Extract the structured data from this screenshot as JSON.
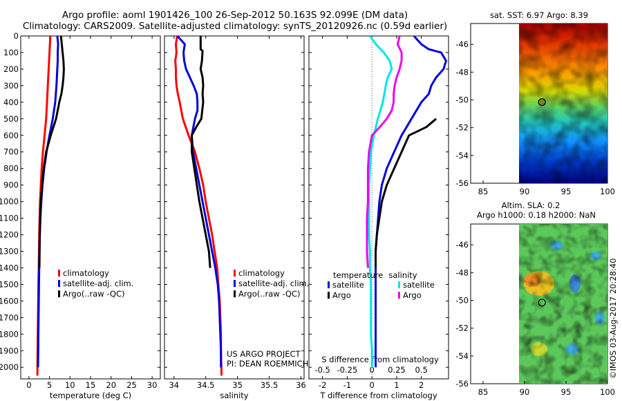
{
  "header": {
    "line1": "Argo profile: aoml 1901426_100 26-Sep-2012 50.163S 92.099E (DM data)",
    "line2": "Climatology: CARS2009. Satellite-adjusted climatology: synTS_20120926.nc (0.59d earlier)"
  },
  "colors": {
    "climatology": "#ff0000",
    "satellite": "#0000dd",
    "argo": "#000000",
    "sat_salinity": "#00e5e5",
    "argo_salinity": "#ee00ee"
  },
  "credits": {
    "project": "US ARGO PROJECT",
    "pi": "PI: DEAN ROEMMICH",
    "stamp": "©IMOS 03-Aug-2017 20:28:40"
  },
  "chart_data": [
    {
      "id": "temperature",
      "type": "line",
      "xlabel": "temperature (deg C)",
      "xlim": [
        -2,
        32
      ],
      "ylim": [
        2070,
        0
      ],
      "xticks": [
        0,
        5,
        10,
        15,
        20,
        25,
        30
      ],
      "yticks": [
        0,
        100,
        200,
        300,
        400,
        500,
        600,
        700,
        800,
        900,
        1000,
        1100,
        1200,
        1300,
        1400,
        1500,
        1600,
        1700,
        1800,
        1900,
        2000
      ],
      "legend": [
        "climatology",
        "satellite-adj. clim.",
        "Argo(..raw -QC)"
      ],
      "series": [
        {
          "name": "climatology",
          "color": "#ff0000",
          "points": [
            [
              5.2,
              0
            ],
            [
              5.0,
              100
            ],
            [
              4.8,
              200
            ],
            [
              4.6,
              300
            ],
            [
              4.4,
              400
            ],
            [
              4.2,
              500
            ],
            [
              3.8,
              600
            ],
            [
              3.4,
              700
            ],
            [
              3.1,
              800
            ],
            [
              2.9,
              900
            ],
            [
              2.7,
              1000
            ],
            [
              2.6,
              1100
            ],
            [
              2.5,
              1200
            ],
            [
              2.45,
              1300
            ],
            [
              2.4,
              1400
            ],
            [
              2.3,
              1500
            ],
            [
              2.25,
              1600
            ],
            [
              2.2,
              1700
            ],
            [
              2.15,
              1800
            ],
            [
              2.1,
              1900
            ],
            [
              2.05,
              2050
            ]
          ]
        },
        {
          "name": "satellite-adj. clim.",
          "color": "#0000dd",
          "points": [
            [
              6.9,
              0
            ],
            [
              7.1,
              50
            ],
            [
              7.0,
              100
            ],
            [
              7.0,
              150
            ],
            [
              6.9,
              200
            ],
            [
              6.7,
              300
            ],
            [
              6.4,
              400
            ],
            [
              5.8,
              500
            ],
            [
              5.0,
              600
            ],
            [
              4.3,
              700
            ],
            [
              3.7,
              800
            ],
            [
              3.3,
              900
            ],
            [
              3.0,
              1000
            ],
            [
              2.8,
              1100
            ],
            [
              2.65,
              1200
            ],
            [
              2.55,
              1300
            ],
            [
              2.5,
              1400
            ],
            [
              2.45,
              1500
            ],
            [
              2.4,
              1600
            ],
            [
              2.35,
              1700
            ],
            [
              2.3,
              1800
            ],
            [
              2.25,
              1900
            ],
            [
              2.2,
              2000
            ]
          ]
        },
        {
          "name": "Argo(..raw -QC)",
          "color": "#000000",
          "points": [
            [
              7.8,
              0
            ],
            [
              8.0,
              50
            ],
            [
              8.2,
              100
            ],
            [
              8.4,
              150
            ],
            [
              8.5,
              200
            ],
            [
              8.4,
              250
            ],
            [
              8.2,
              300
            ],
            [
              7.9,
              350
            ],
            [
              7.4,
              400
            ],
            [
              6.6,
              500
            ],
            [
              5.3,
              600
            ],
            [
              4.2,
              700
            ],
            [
              3.6,
              800
            ],
            [
              3.2,
              900
            ],
            [
              2.9,
              1000
            ],
            [
              2.75,
              1100
            ],
            [
              2.65,
              1200
            ],
            [
              2.6,
              1300
            ],
            [
              2.55,
              1400
            ]
          ]
        }
      ]
    },
    {
      "id": "salinity",
      "type": "line",
      "xlabel": "salinity",
      "xlim": [
        33.85,
        36.05
      ],
      "ylim": [
        2070,
        0
      ],
      "xticks": [
        34,
        34.5,
        35,
        35.5,
        36
      ],
      "legend": [
        "climatology",
        "satellite-adj. clim.",
        "Argo(..raw -QC)"
      ],
      "series": [
        {
          "name": "climatology",
          "color": "#ff0000",
          "points": [
            [
              34.05,
              0
            ],
            [
              34.03,
              50
            ],
            [
              34.04,
              100
            ],
            [
              34.02,
              150
            ],
            [
              34.03,
              200
            ],
            [
              34.03,
              250
            ],
            [
              34.04,
              300
            ],
            [
              34.06,
              350
            ],
            [
              34.09,
              400
            ],
            [
              34.14,
              500
            ],
            [
              34.23,
              600
            ],
            [
              34.33,
              700
            ],
            [
              34.4,
              800
            ],
            [
              34.46,
              900
            ],
            [
              34.5,
              1000
            ],
            [
              34.55,
              1100
            ],
            [
              34.6,
              1200
            ],
            [
              34.64,
              1300
            ],
            [
              34.68,
              1400
            ],
            [
              34.7,
              1500
            ],
            [
              34.72,
              1600
            ],
            [
              34.73,
              1700
            ],
            [
              34.74,
              1800
            ],
            [
              34.74,
              1900
            ],
            [
              34.75,
              2050
            ]
          ]
        },
        {
          "name": "satellite-adj. clim.",
          "color": "#0000dd",
          "points": [
            [
              34.05,
              0
            ],
            [
              34.1,
              20
            ],
            [
              34.17,
              50
            ],
            [
              34.15,
              100
            ],
            [
              34.16,
              150
            ],
            [
              34.19,
              200
            ],
            [
              34.25,
              250
            ],
            [
              34.31,
              300
            ],
            [
              34.36,
              350
            ],
            [
              34.37,
              400
            ],
            [
              34.37,
              450
            ],
            [
              34.33,
              500
            ],
            [
              34.28,
              600
            ],
            [
              34.3,
              700
            ],
            [
              34.35,
              800
            ],
            [
              34.4,
              900
            ],
            [
              34.45,
              1000
            ],
            [
              34.5,
              1100
            ],
            [
              34.55,
              1200
            ],
            [
              34.6,
              1300
            ],
            [
              34.65,
              1400
            ],
            [
              34.69,
              1500
            ],
            [
              34.71,
              1600
            ],
            [
              34.72,
              1700
            ],
            [
              34.73,
              1800
            ],
            [
              34.74,
              1900
            ],
            [
              34.74,
              2000
            ]
          ]
        },
        {
          "name": "Argo(..raw -QC)",
          "color": "#000000",
          "points": [
            [
              34.42,
              0
            ],
            [
              34.42,
              50
            ],
            [
              34.42,
              80
            ],
            [
              34.45,
              90
            ],
            [
              34.44,
              150
            ],
            [
              34.42,
              200
            ],
            [
              34.45,
              250
            ],
            [
              34.46,
              300
            ],
            [
              34.45,
              350
            ],
            [
              34.46,
              400
            ],
            [
              34.43,
              500
            ],
            [
              34.35,
              550
            ],
            [
              34.28,
              600
            ],
            [
              34.28,
              700
            ],
            [
              34.32,
              800
            ],
            [
              34.36,
              900
            ],
            [
              34.4,
              1000
            ],
            [
              34.45,
              1100
            ],
            [
              34.5,
              1200
            ],
            [
              34.55,
              1300
            ],
            [
              34.57,
              1400
            ]
          ]
        }
      ]
    },
    {
      "id": "differences",
      "type": "line",
      "xlabel": "T difference from climatology",
      "xlabel_top": "S difference from climatology",
      "xlim": [
        -2.55,
        3.1
      ],
      "ylim": [
        2070,
        0
      ],
      "xticks": [
        -2,
        -1,
        0,
        1,
        2
      ],
      "xticks_top": [
        -0.5,
        -0.25,
        0,
        0.25,
        0.5
      ],
      "legend_groups": [
        {
          "title": "temperature",
          "items": [
            "satellite",
            "Argo"
          ]
        },
        {
          "title": "salinity",
          "items": [
            "satellite",
            "Argo"
          ]
        }
      ],
      "series": [
        {
          "name": "temperature satellite",
          "color": "#0000dd",
          "points": [
            [
              1.7,
              0
            ],
            [
              2.0,
              50
            ],
            [
              2.3,
              80
            ],
            [
              2.8,
              100
            ],
            [
              3.0,
              150
            ],
            [
              2.9,
              200
            ],
            [
              2.6,
              250
            ],
            [
              2.4,
              300
            ],
            [
              2.3,
              350
            ],
            [
              2.0,
              400
            ],
            [
              1.6,
              500
            ],
            [
              1.2,
              600
            ],
            [
              0.9,
              700
            ],
            [
              0.6,
              800
            ],
            [
              0.4,
              900
            ],
            [
              0.3,
              1000
            ],
            [
              0.25,
              1100
            ],
            [
              0.2,
              1200
            ],
            [
              0.15,
              1300
            ],
            [
              0.15,
              1400
            ],
            [
              0.15,
              1500
            ],
            [
              0.15,
              1600
            ],
            [
              0.15,
              1700
            ],
            [
              0.15,
              1800
            ],
            [
              0.15,
              1900
            ],
            [
              0.15,
              2000
            ]
          ]
        },
        {
          "name": "temperature Argo",
          "color": "#000000",
          "points": [
            [
              2.6,
              500
            ],
            [
              2.2,
              550
            ],
            [
              1.5,
              600
            ],
            [
              1.2,
              700
            ],
            [
              0.9,
              800
            ],
            [
              0.6,
              900
            ],
            [
              0.4,
              1000
            ],
            [
              0.3,
              1100
            ],
            [
              0.2,
              1200
            ],
            [
              0.15,
              1300
            ],
            [
              0.15,
              1400
            ]
          ]
        },
        {
          "name": "salinity satellite",
          "color": "#00e5e5",
          "points": [
            [
              -0.02,
              0
            ],
            [
              0.04,
              50
            ],
            [
              0.12,
              100
            ],
            [
              0.18,
              150
            ],
            [
              0.2,
              200
            ],
            [
              0.16,
              250
            ],
            [
              0.14,
              300
            ],
            [
              0.11,
              400
            ],
            [
              0.06,
              500
            ],
            [
              0.02,
              600
            ],
            [
              -0.01,
              700
            ],
            [
              -0.02,
              800
            ],
            [
              -0.03,
              900
            ],
            [
              -0.03,
              1000
            ],
            [
              -0.03,
              1100
            ],
            [
              -0.03,
              1200
            ],
            [
              -0.02,
              1300
            ],
            [
              -0.02,
              1400
            ],
            [
              -0.01,
              1500
            ],
            [
              -0.01,
              1600
            ],
            [
              -0.01,
              1700
            ],
            [
              -0.01,
              1800
            ],
            [
              0.0,
              1900
            ],
            [
              0.0,
              2000
            ]
          ]
        },
        {
          "name": "salinity Argo",
          "color": "#ee00ee",
          "points": [
            [
              0.28,
              0
            ],
            [
              0.26,
              50
            ],
            [
              0.3,
              100
            ],
            [
              0.3,
              150
            ],
            [
              0.28,
              200
            ],
            [
              0.25,
              250
            ],
            [
              0.23,
              300
            ],
            [
              0.22,
              350
            ],
            [
              0.22,
              400
            ],
            [
              0.2,
              450
            ],
            [
              0.15,
              500
            ],
            [
              0.08,
              550
            ],
            [
              0.0,
              600
            ],
            [
              -0.03,
              700
            ],
            [
              -0.04,
              800
            ],
            [
              -0.04,
              900
            ],
            [
              -0.04,
              1000
            ],
            [
              -0.05,
              1100
            ],
            [
              -0.05,
              1200
            ],
            [
              -0.05,
              1300
            ],
            [
              -0.04,
              1400
            ]
          ]
        }
      ]
    },
    {
      "id": "sst-map",
      "type": "heatmap",
      "title": "sat. SST: 6.97 Argo: 8.39",
      "xlim": [
        83.5,
        100
      ],
      "ylim": [
        -56,
        -44.5
      ],
      "xticks": [
        85,
        90,
        95,
        100
      ],
      "yticks": [
        -46,
        -48,
        -50,
        -52,
        -54,
        -56
      ],
      "colormap": "jet",
      "marker": {
        "lon": 92.1,
        "lat": -50.16
      },
      "data_extent": [
        90,
        100
      ]
    },
    {
      "id": "sla-map",
      "type": "heatmap",
      "title_line1": "Altim. SLA: 0.2",
      "title_line2": "Argo h1000: 0.18 h2000: NaN",
      "xlim": [
        83.5,
        100
      ],
      "ylim": [
        -56,
        -44.5
      ],
      "xticks": [
        85,
        90,
        95,
        100
      ],
      "yticks": [
        -46,
        -48,
        -50,
        -52,
        -54,
        -56
      ],
      "colormap": "jet",
      "marker": {
        "lon": 92.1,
        "lat": -50.16
      },
      "data_extent": [
        90,
        100
      ]
    }
  ]
}
